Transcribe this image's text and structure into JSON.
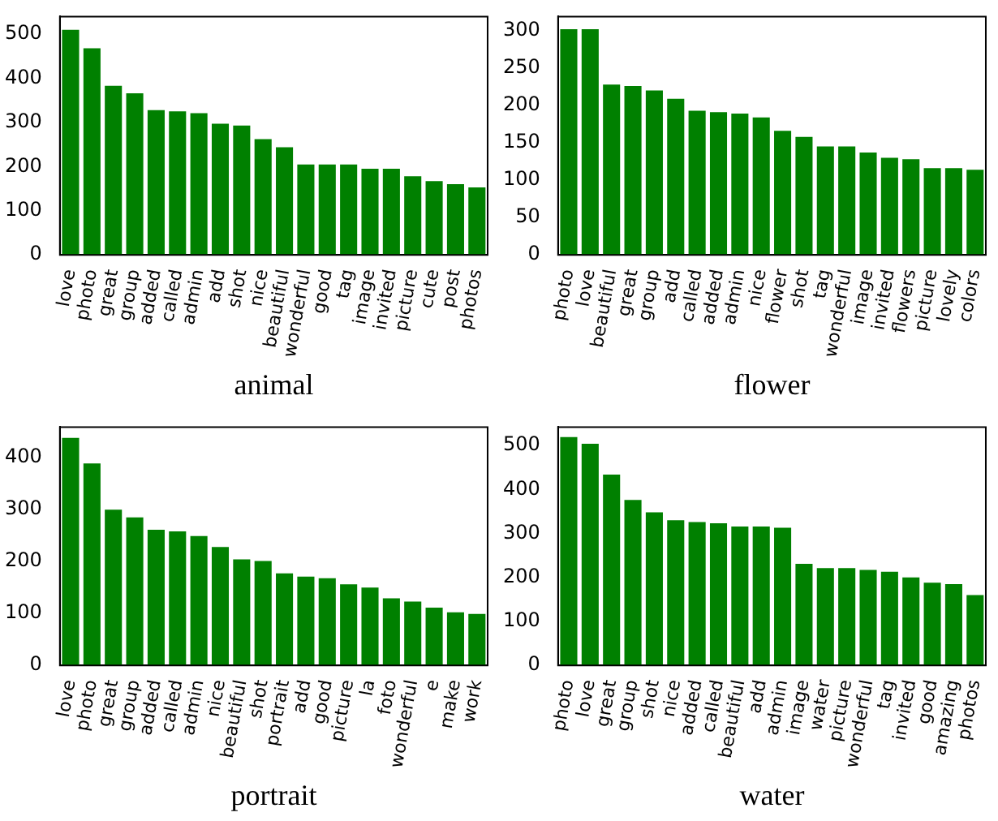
{
  "chart_data": [
    {
      "type": "bar",
      "xlabel": "animal",
      "categories": [
        "love",
        "photo",
        "great",
        "group",
        "added",
        "called",
        "admin",
        "add",
        "shot",
        "nice",
        "beautiful",
        "wonderful",
        "good",
        "tag",
        "image",
        "invited",
        "picture",
        "cute",
        "post",
        "photos"
      ],
      "values": [
        510,
        468,
        383,
        366,
        328,
        325,
        321,
        297,
        293,
        262,
        244,
        205,
        205,
        205,
        195,
        195,
        178,
        167,
        160,
        153
      ],
      "color": "#008000",
      "ylim": [
        0,
        540
      ],
      "yticks": [
        0,
        100,
        200,
        300,
        400,
        500
      ],
      "grid": false
    },
    {
      "type": "bar",
      "xlabel": "flower",
      "categories": [
        "photo",
        "love",
        "beautiful",
        "great",
        "group",
        "add",
        "called",
        "added",
        "admin",
        "nice",
        "flower",
        "shot",
        "tag",
        "wonderful",
        "image",
        "invited",
        "flowers",
        "picture",
        "lovely",
        "colors"
      ],
      "values": [
        302,
        302,
        228,
        226,
        220,
        209,
        193,
        191,
        189,
        184,
        166,
        158,
        145,
        145,
        137,
        130,
        128,
        116,
        116,
        114
      ],
      "color": "#008000",
      "ylim": [
        0,
        319
      ],
      "yticks": [
        0,
        50,
        100,
        150,
        200,
        250,
        300
      ],
      "grid": false
    },
    {
      "type": "bar",
      "xlabel": "portrait",
      "categories": [
        "love",
        "photo",
        "great",
        "group",
        "added",
        "called",
        "admin",
        "nice",
        "beautiful",
        "shot",
        "portrait",
        "add",
        "good",
        "picture",
        "la",
        "foto",
        "wonderful",
        "e",
        "make",
        "work"
      ],
      "values": [
        438,
        389,
        300,
        285,
        261,
        258,
        249,
        228,
        204,
        201,
        177,
        171,
        168,
        156,
        150,
        129,
        123,
        111,
        102,
        99
      ],
      "color": "#008000",
      "ylim": [
        0,
        459
      ],
      "yticks": [
        0,
        100,
        200,
        300,
        400
      ],
      "grid": false
    },
    {
      "type": "bar",
      "xlabel": "water",
      "categories": [
        "photo",
        "love",
        "great",
        "group",
        "shot",
        "nice",
        "added",
        "called",
        "beautiful",
        "add",
        "admin",
        "image",
        "water",
        "picture",
        "wonderful",
        "tag",
        "invited",
        "good",
        "amazing",
        "photos"
      ],
      "values": [
        519,
        504,
        434,
        376,
        348,
        330,
        326,
        323,
        316,
        316,
        313,
        231,
        221,
        221,
        217,
        213,
        200,
        188,
        185,
        160
      ],
      "color": "#008000",
      "ylim": [
        0,
        542
      ],
      "yticks": [
        0,
        100,
        200,
        300,
        400,
        500
      ],
      "grid": false
    }
  ]
}
